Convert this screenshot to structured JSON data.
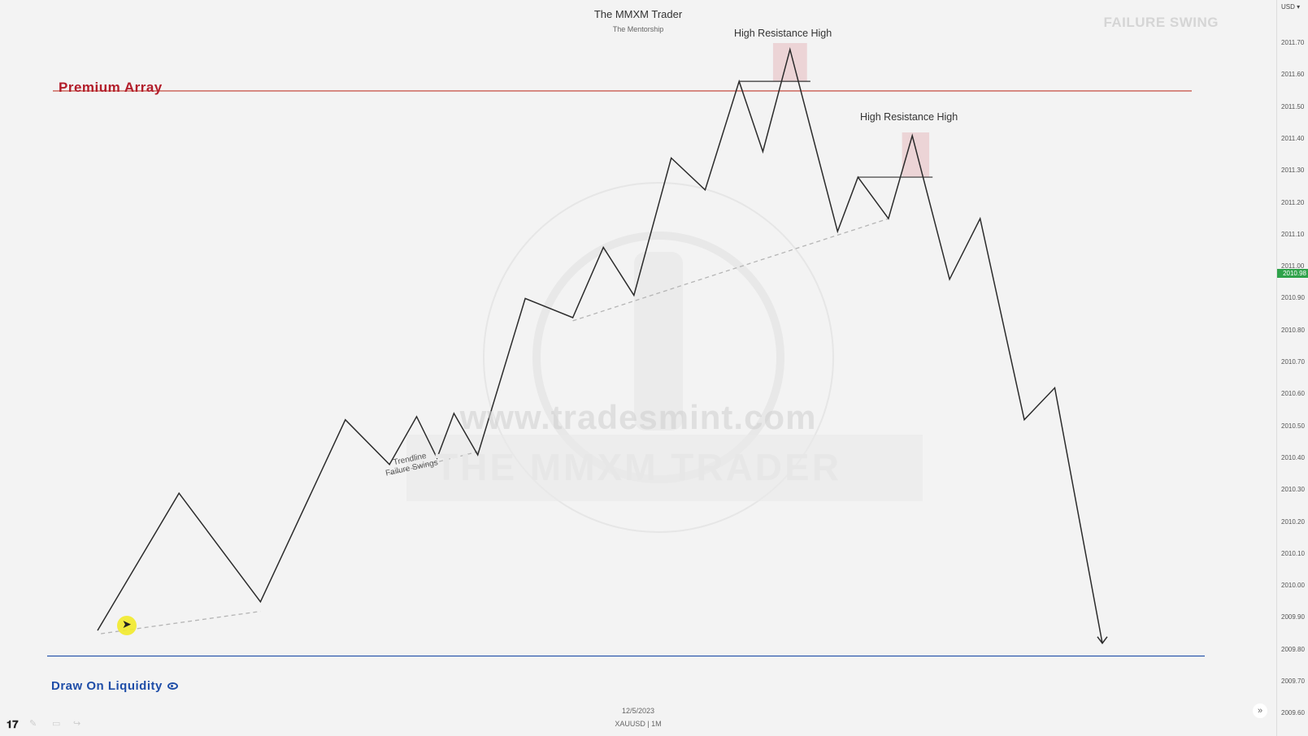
{
  "header": {
    "title": "The MMXM Trader",
    "subtitle": "The Mentorship"
  },
  "labels": {
    "failure_swing": "FAILURE SWING",
    "premium_array": "Premium Array",
    "draw_on_liquidity": "Draw On Liquidity",
    "high_resistance_high_1": "High Resistance High",
    "high_resistance_high_2": "High Resistance High",
    "trendline_line1": "Trendline",
    "trendline_line2": "Failure Swings",
    "watermark_url": "www.tradesmint.com",
    "watermark_brand": "THE MMXM TRADER"
  },
  "axis": {
    "currency": "USD",
    "current_price": "2010.98",
    "ticks": [
      "2011.70",
      "2011.60",
      "2011.50",
      "2011.40",
      "2011.30",
      "2011.20",
      "2011.10",
      "2011.00",
      "2010.90",
      "2010.80",
      "2010.70",
      "2010.60",
      "2010.50",
      "2010.40",
      "2010.30",
      "2010.20",
      "2010.10",
      "2010.00",
      "2009.90",
      "2009.80",
      "2009.70",
      "2009.60"
    ]
  },
  "footer": {
    "date": "12/5/2023",
    "symbol": "XAUUSD | 1M"
  },
  "colors": {
    "premium_line": "#c0392b",
    "dol_line": "#1f4ea8",
    "price_path": "#2b2b2b",
    "highlight_box": "#e8c6c9",
    "current_price_bg": "#2fa24a"
  },
  "chart_data": {
    "type": "line",
    "title": "",
    "xlabel": "",
    "ylabel": "",
    "ylim": [
      2009.55,
      2011.85
    ],
    "x_range": [
      0,
      31
    ],
    "series": [
      {
        "values": [
          [
            0,
            2009.86
          ],
          [
            2.4,
            2010.29
          ],
          [
            4.8,
            2009.95
          ],
          [
            7.3,
            2010.52
          ],
          [
            8.6,
            2010.38
          ],
          [
            9.4,
            2010.53
          ],
          [
            10.0,
            2010.4
          ],
          [
            10.5,
            2010.54
          ],
          [
            11.2,
            2010.41
          ],
          [
            12.6,
            2010.9
          ],
          [
            14.0,
            2010.84
          ],
          [
            14.9,
            2011.06
          ],
          [
            15.8,
            2010.91
          ],
          [
            16.9,
            2011.34
          ],
          [
            17.9,
            2011.24
          ],
          [
            18.9,
            2011.58
          ],
          [
            19.6,
            2011.36
          ],
          [
            20.4,
            2011.68
          ],
          [
            21.8,
            2011.11
          ],
          [
            22.4,
            2011.28
          ],
          [
            23.3,
            2011.15
          ],
          [
            24.0,
            2011.41
          ],
          [
            25.1,
            2010.96
          ],
          [
            26.0,
            2011.15
          ],
          [
            27.3,
            2010.52
          ],
          [
            28.2,
            2010.62
          ],
          [
            29.6,
            2009.82
          ]
        ]
      }
    ],
    "levels": [
      {
        "name": "premium_array",
        "price": 2011.55
      },
      {
        "name": "draw_on_liquidity",
        "price": 2009.78
      }
    ],
    "resistance_lines": [
      {
        "x1": 18.9,
        "x2": 21.0,
        "price": 2011.58
      },
      {
        "x1": 22.4,
        "x2": 24.6,
        "price": 2011.28
      }
    ],
    "highlight_boxes": [
      {
        "x1": 19.9,
        "x2": 20.9,
        "y1": 2011.58,
        "y2": 2011.7
      },
      {
        "x1": 23.7,
        "x2": 24.5,
        "y1": 2011.28,
        "y2": 2011.42
      }
    ],
    "trendlines": [
      {
        "x1": 0.1,
        "y1": 2009.85,
        "x2": 4.8,
        "y2": 2009.92
      },
      {
        "x1": 8.6,
        "y1": 2010.35,
        "x2": 11.2,
        "y2": 2010.42
      },
      {
        "x1": 14.0,
        "y1": 2010.83,
        "x2": 23.3,
        "y2": 2011.15
      }
    ]
  }
}
